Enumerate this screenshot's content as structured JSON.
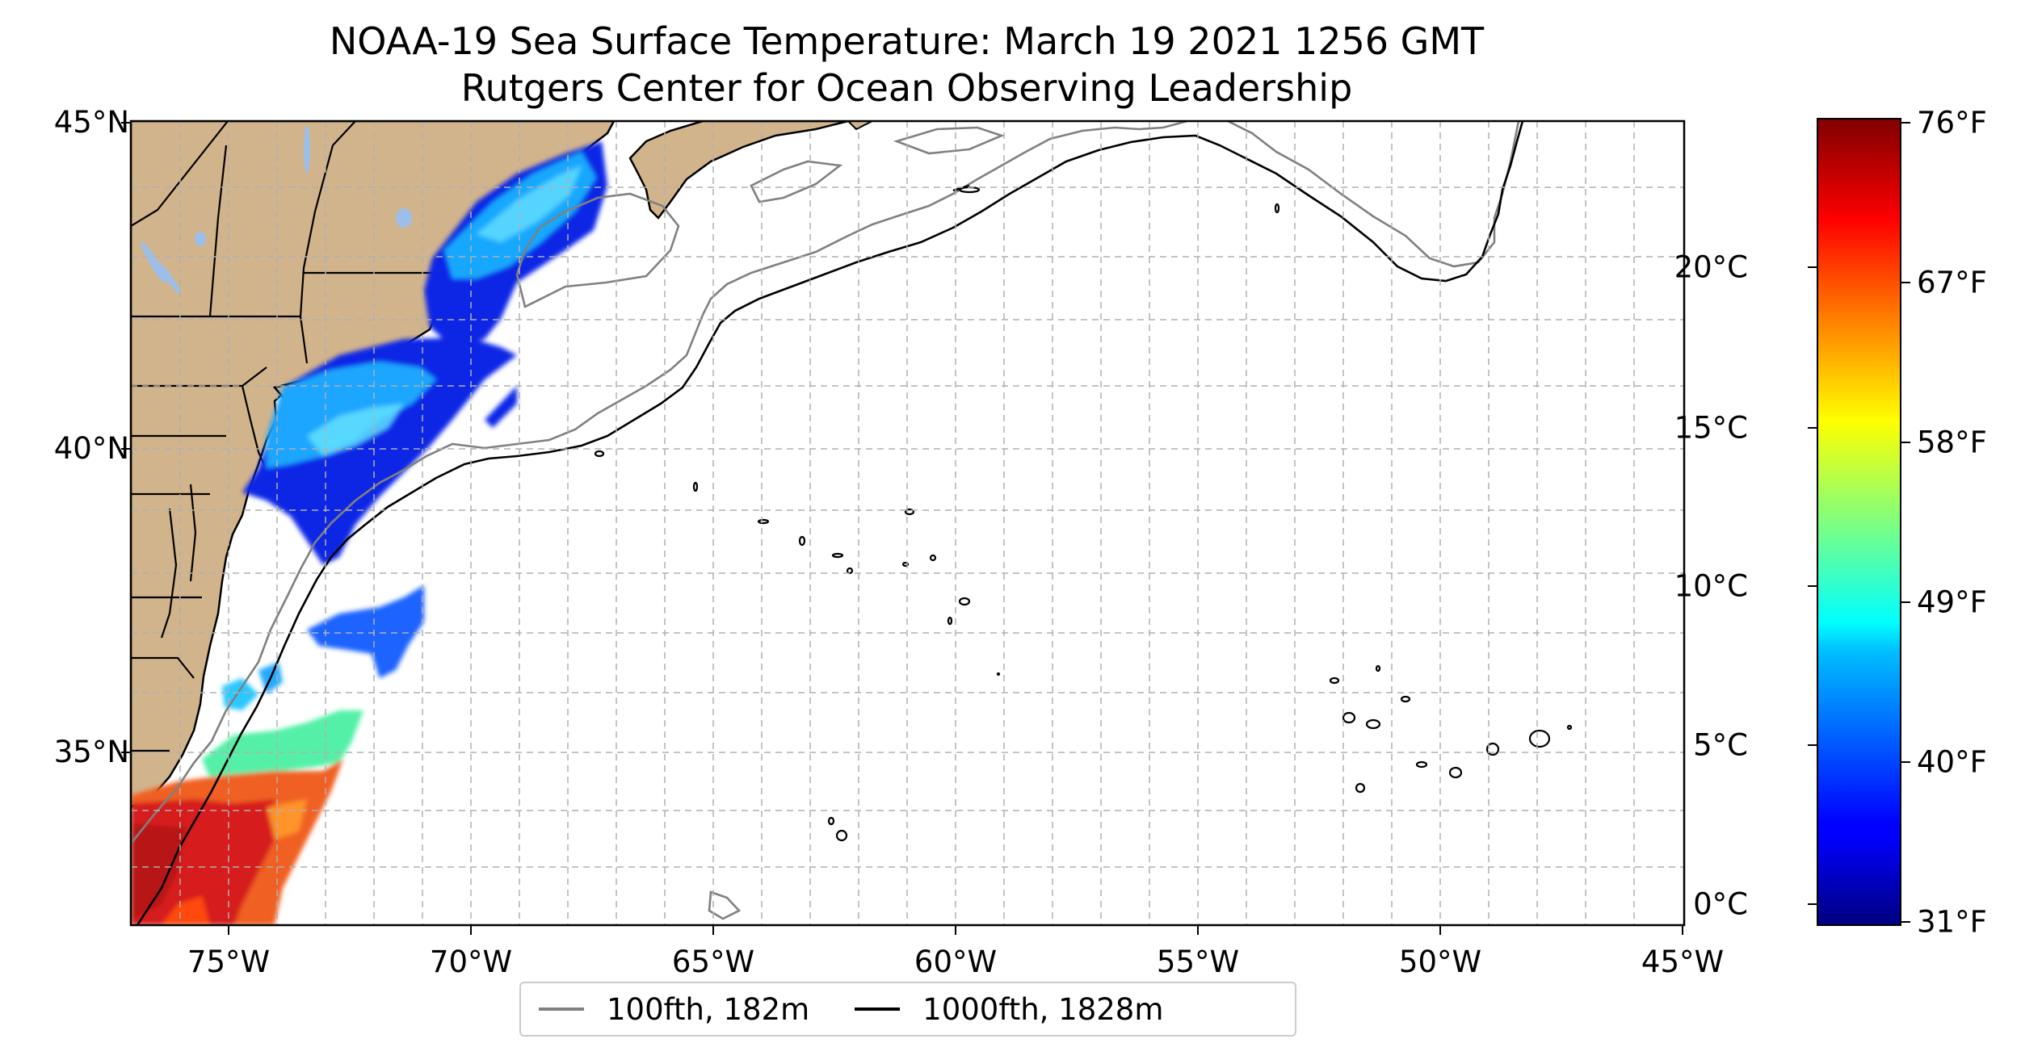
{
  "title": "NOAA-19 Sea Surface Temperature: March 19 2021 1256 GMT",
  "subtitle": "Rutgers Center for Ocean Observing Leadership",
  "map": {
    "lon_range": [
      -77,
      -45
    ],
    "lat_range": [
      32.3,
      45
    ],
    "lon_ticks": [
      "75°W",
      "70°W",
      "65°W",
      "60°W",
      "55°W",
      "50°W",
      "45°W"
    ],
    "lat_ticks": [
      "45°N",
      "40°N",
      "35°N"
    ],
    "gridlines": true,
    "land_color": "#d2b48c",
    "ocean_color": "#ffffff",
    "lake_color": "#9ebeea"
  },
  "colorbar": {
    "colormap": "jet",
    "celsius_labels": [
      "20°C",
      "15°C",
      "10°C",
      "5°C",
      "0°C"
    ],
    "fahrenheit_labels": [
      "76°F",
      "67°F",
      "58°F",
      "49°F",
      "40°F",
      "31°F"
    ],
    "celsius_range": [
      -0.6,
      24.4
    ]
  },
  "legend": {
    "items": [
      {
        "label": "100fth, 182m",
        "color": "#808080"
      },
      {
        "label": "1000fth, 1828m",
        "color": "#000000"
      }
    ],
    "placement": "bottom-center"
  }
}
